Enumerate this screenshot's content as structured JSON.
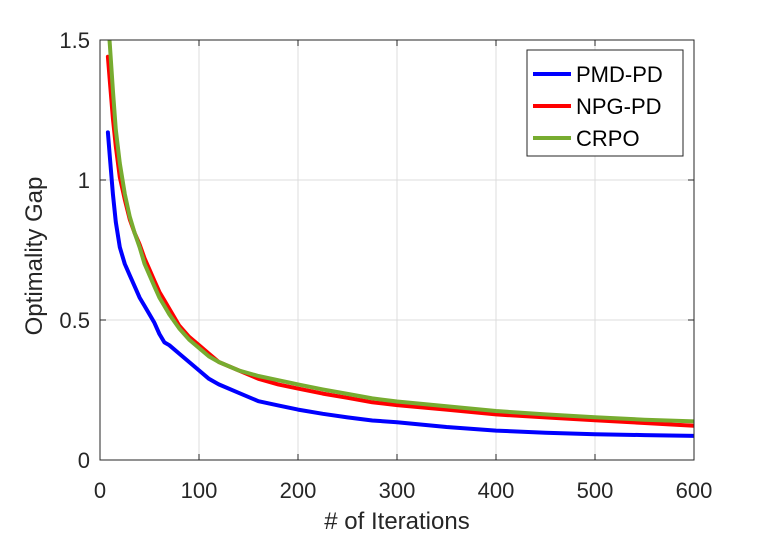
{
  "chart_data": {
    "type": "line",
    "title": "",
    "xlabel": "# of Iterations",
    "ylabel": "Optimality Gap",
    "xlim": [
      0,
      600
    ],
    "ylim": [
      0,
      1.5
    ],
    "xticks": [
      0,
      100,
      200,
      300,
      400,
      500,
      600
    ],
    "yticks": [
      0,
      0.5,
      1,
      1.5
    ],
    "xtick_labels": [
      "0",
      "100",
      "200",
      "300",
      "400",
      "500",
      "600"
    ],
    "ytick_labels": [
      "0",
      "0.5",
      "1",
      "1.5"
    ],
    "grid": true,
    "legend_position": "top-right",
    "x": [
      8,
      10,
      13,
      16,
      20,
      25,
      30,
      35,
      40,
      45,
      50,
      55,
      60,
      65,
      70,
      80,
      90,
      100,
      110,
      120,
      140,
      160,
      180,
      200,
      225,
      250,
      275,
      300,
      350,
      400,
      450,
      500,
      550,
      600
    ],
    "series": [
      {
        "name": "PMD-PD",
        "color": "#0000ff",
        "values": [
          1.17,
          1.08,
          0.95,
          0.85,
          0.76,
          0.7,
          0.66,
          0.62,
          0.58,
          0.55,
          0.52,
          0.49,
          0.45,
          0.42,
          0.41,
          0.38,
          0.35,
          0.32,
          0.29,
          0.27,
          0.24,
          0.21,
          0.195,
          0.18,
          0.165,
          0.152,
          0.141,
          0.135,
          0.118,
          0.105,
          0.097,
          0.092,
          0.089,
          0.086
        ]
      },
      {
        "name": "NPG-PD",
        "color": "#ff0000",
        "values": [
          1.44,
          1.35,
          1.22,
          1.12,
          1.01,
          0.93,
          0.86,
          0.81,
          0.77,
          0.72,
          0.68,
          0.64,
          0.6,
          0.57,
          0.54,
          0.48,
          0.44,
          0.41,
          0.38,
          0.35,
          0.32,
          0.29,
          0.27,
          0.255,
          0.237,
          0.222,
          0.206,
          0.196,
          0.18,
          0.163,
          0.152,
          0.142,
          0.132,
          0.122
        ]
      },
      {
        "name": "CRPO",
        "color": "#77ac30",
        "values": [
          1.58,
          1.48,
          1.32,
          1.18,
          1.06,
          0.95,
          0.87,
          0.81,
          0.76,
          0.7,
          0.66,
          0.62,
          0.58,
          0.55,
          0.52,
          0.47,
          0.43,
          0.4,
          0.37,
          0.35,
          0.32,
          0.3,
          0.285,
          0.27,
          0.252,
          0.236,
          0.22,
          0.209,
          0.192,
          0.175,
          0.163,
          0.153,
          0.144,
          0.138
        ]
      }
    ]
  }
}
